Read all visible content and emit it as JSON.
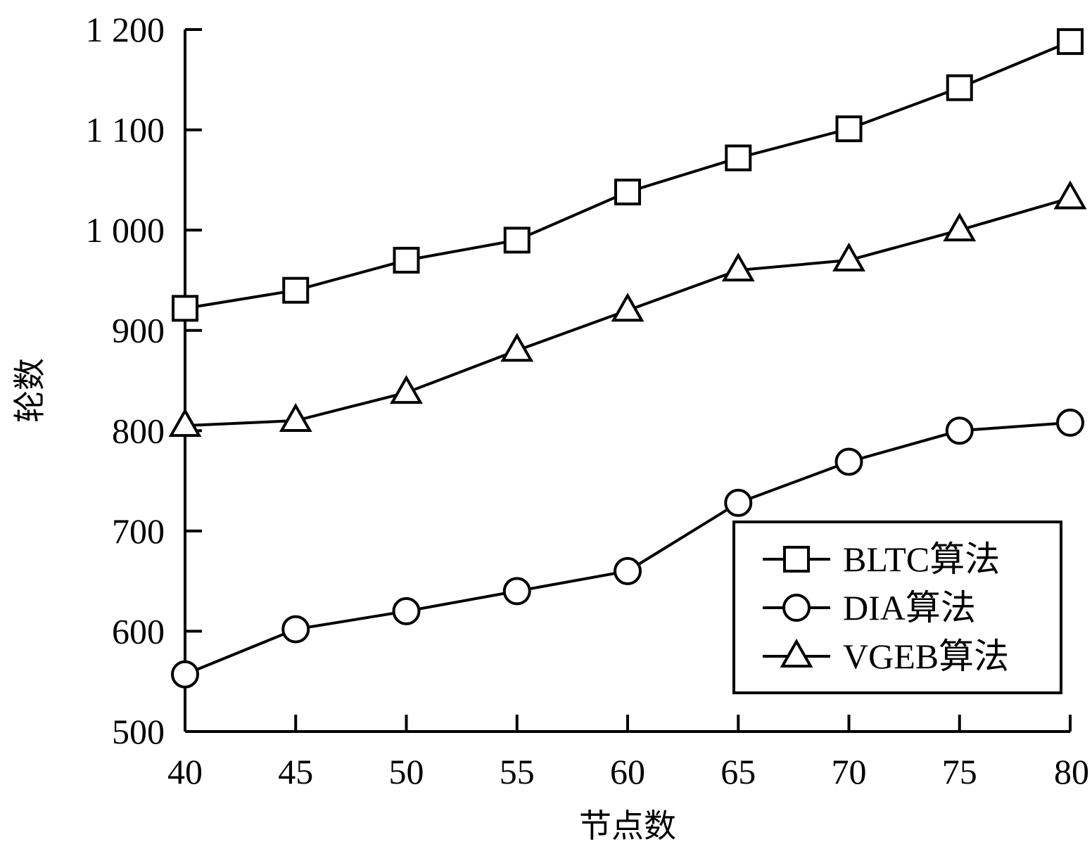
{
  "chart_data": {
    "type": "line",
    "title": "",
    "xlabel": "节点数",
    "ylabel": "轮数",
    "x": [
      40,
      45,
      50,
      55,
      60,
      65,
      70,
      75,
      80
    ],
    "x_tick_labels": [
      "40",
      "45",
      "50",
      "55",
      "60",
      "65",
      "70",
      "75",
      "80"
    ],
    "xlim": [
      40,
      80
    ],
    "ylim": [
      500,
      1200
    ],
    "y_ticks": [
      500,
      600,
      700,
      800,
      900,
      1000,
      1100,
      1200
    ],
    "y_tick_labels": [
      "500",
      "600",
      "700",
      "800",
      "900",
      "1 000",
      "1 100",
      "1 200"
    ],
    "grid": false,
    "legend_position": "bottom-right",
    "series": [
      {
        "name": "BLTC算法",
        "marker": "square",
        "values": [
          922,
          940,
          970,
          990,
          1038,
          1072,
          1101,
          1142,
          1188
        ]
      },
      {
        "name": "DIA算法",
        "marker": "circle",
        "values": [
          557,
          602,
          620,
          640,
          660,
          728,
          769,
          800,
          808
        ]
      },
      {
        "name": "VGEB算法",
        "marker": "triangle",
        "values": [
          805,
          810,
          838,
          880,
          920,
          960,
          970,
          1000,
          1032
        ]
      }
    ]
  }
}
